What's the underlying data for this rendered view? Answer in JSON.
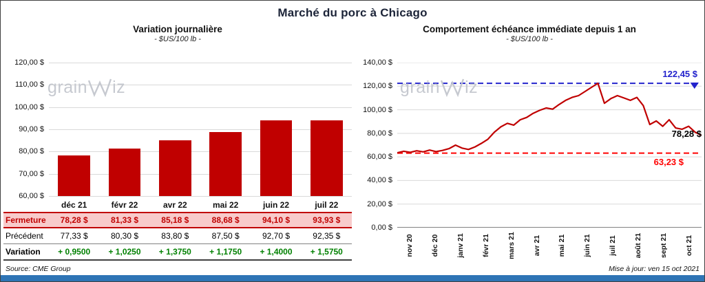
{
  "page": {
    "title": "Marché du porc à Chicago",
    "watermark": {
      "part1": "grain",
      "part2": "iz"
    },
    "footer": {
      "source": "Source: CME Group",
      "updated": "Mise à jour: ven 15 oct 2021"
    },
    "colors": {
      "bottom_bar": "#2E74B5",
      "grid": "#D9D9D9"
    }
  },
  "chart_data": [
    {
      "type": "bar",
      "title": "Variation journalière",
      "subtitle": "- $US/100 lb -",
      "categories": [
        "déc 21",
        "févr 22",
        "avr 22",
        "mai 22",
        "juin 22",
        "juil 22"
      ],
      "values": [
        78.28,
        81.33,
        85.18,
        88.68,
        94.1,
        93.93
      ],
      "ylim": [
        60,
        120
      ],
      "ytick_labels": [
        "120,00 $",
        "110,00 $",
        "100,00 $",
        "90,00 $",
        "80,00 $",
        "70,00 $",
        "60,00 $"
      ],
      "bar_color": "#C00000",
      "legend": "none",
      "grid": true,
      "table": {
        "rows": [
          {
            "label": "Fermeture",
            "style": "fermeture",
            "values": [
              "78,28  $",
              "81,33  $",
              "85,18  $",
              "88,68  $",
              "94,10  $",
              "93,93  $"
            ]
          },
          {
            "label": "Précédent",
            "style": "precedent",
            "values": [
              "77,33  $",
              "80,30  $",
              "83,80  $",
              "87,50  $",
              "92,70  $",
              "92,35  $"
            ]
          },
          {
            "label": "Variation",
            "style": "variation",
            "values": [
              "+ 0,9500",
              "+ 1,0250",
              "+ 1,3750",
              "+ 1,1750",
              "+ 1,4000",
              "+ 1,5750"
            ]
          }
        ]
      }
    },
    {
      "type": "line",
      "title": "Comportement échéance immédiate depuis 1 an",
      "subtitle": "- $US/100 lb -",
      "x_labels": [
        "nov 20",
        "déc 20",
        "janv 21",
        "févr 21",
        "mars 21",
        "avr 21",
        "mai 21",
        "juin 21",
        "juil 21",
        "août 21",
        "sept 21",
        "oct 21"
      ],
      "ylim": [
        0,
        140
      ],
      "ytick_labels": [
        "140,00 $",
        "120,00 $",
        "100,00 $",
        "80,00 $",
        "60,00 $",
        "40,00 $",
        "20,00 $",
        "0,00 $"
      ],
      "line_color": "#C00000",
      "grid": true,
      "values": [
        63.5,
        64.8,
        63.9,
        65.2,
        64.3,
        65.8,
        64.5,
        65.5,
        67.0,
        70.0,
        67.5,
        66.3,
        68.5,
        71.5,
        75.0,
        81.0,
        85.5,
        88.5,
        87.0,
        91.5,
        93.5,
        97.0,
        99.5,
        101.5,
        100.5,
        104.5,
        108.0,
        110.5,
        112.0,
        115.5,
        119.0,
        122.45,
        105.5,
        109.5,
        112.0,
        110.0,
        108.0,
        110.5,
        103.5,
        87.5,
        90.5,
        86.0,
        91.5,
        84.5,
        83.5,
        86.0,
        81.0,
        78.28
      ],
      "max_line": {
        "value": 122.45,
        "label": "122,45 $",
        "color": "#2222CC"
      },
      "min_line": {
        "value": 63.23,
        "label": "63,23 $",
        "color": "#FF0000"
      },
      "last_value": 78.28,
      "last_label": "78,28 $"
    }
  ]
}
